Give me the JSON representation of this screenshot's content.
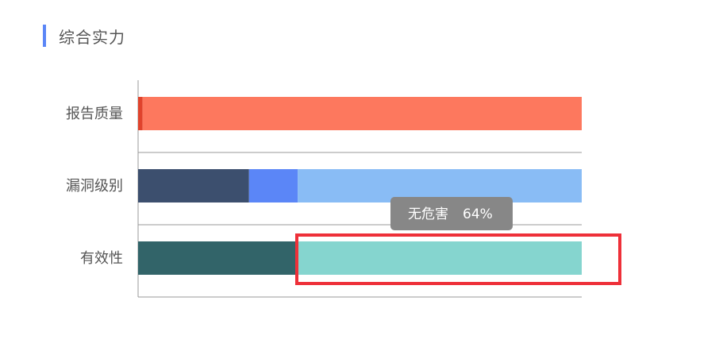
{
  "title": "综合实力",
  "chart_data": {
    "type": "bar",
    "orientation": "horizontal",
    "stacked": true,
    "categories": [
      "报告质量",
      "漏洞级别",
      "有效性"
    ],
    "rows": [
      {
        "category": "报告质量",
        "segments": [
          {
            "value": 1,
            "color": "#e0432c"
          },
          {
            "value": 99,
            "color": "#fd785e"
          }
        ]
      },
      {
        "category": "漏洞级别",
        "segments": [
          {
            "value": 25,
            "color": "#3c4f6e"
          },
          {
            "value": 11,
            "color": "#5b86f7"
          },
          {
            "value": 64,
            "color": "#89bcf5"
          }
        ]
      },
      {
        "category": "有效性",
        "segments": [
          {
            "value": 36,
            "color": "#326469"
          },
          {
            "value": 64,
            "color": "#85d5cf"
          }
        ]
      }
    ],
    "xlim": [
      0,
      100
    ],
    "grid": true
  },
  "tooltip": {
    "name": "无危害",
    "value": "64%"
  }
}
